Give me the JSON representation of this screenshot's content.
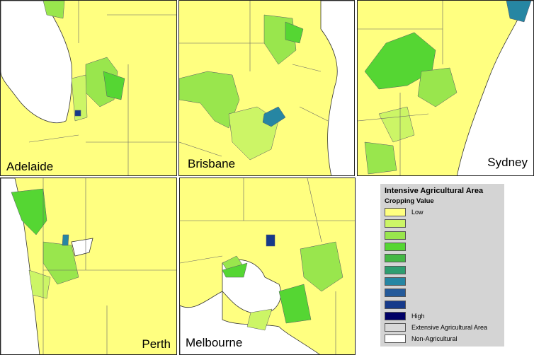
{
  "panels": [
    {
      "label": "Adelaide"
    },
    {
      "label": "Brisbane"
    },
    {
      "label": "Sydney"
    },
    {
      "label": "Perth"
    },
    {
      "label": "Melbourne"
    }
  ],
  "legend": {
    "title": "Intensive Agricultural Area",
    "subtitle": "Cropping Value",
    "items": [
      {
        "color": "#ffff80",
        "label": "Low"
      },
      {
        "color": "#ccf566"
      },
      {
        "color": "#99e64d"
      },
      {
        "color": "#55d633"
      },
      {
        "color": "#44b844"
      },
      {
        "color": "#2e9e70"
      },
      {
        "color": "#2686a3"
      },
      {
        "color": "#245a9a"
      },
      {
        "color": "#163a8a"
      },
      {
        "color": "#000066",
        "label": "High"
      },
      {
        "color": "#d9d9d9",
        "label": "Extensive Agricultural Area"
      },
      {
        "color": "#ffffff",
        "label": "Non-Agricultural"
      }
    ]
  }
}
